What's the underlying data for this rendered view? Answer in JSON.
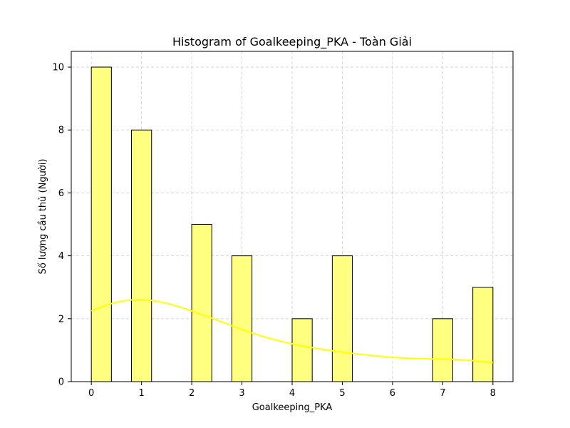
{
  "chart_data": {
    "type": "bar",
    "title": "Histogram of Goalkeeping_PKA - Toàn Giải",
    "xlabel": "Goalkeeping_PKA",
    "ylabel": "Số lượng cầu thủ (Người)",
    "xlim": [
      -0.4,
      8.4
    ],
    "ylim": [
      0,
      10.5
    ],
    "xticks": [
      0,
      1,
      2,
      3,
      4,
      5,
      6,
      7,
      8
    ],
    "yticks": [
      0,
      2,
      4,
      6,
      8,
      10
    ],
    "bin_width": 0.4,
    "bins": [
      {
        "x0": 0.0,
        "x1": 0.4,
        "count": 10
      },
      {
        "x0": 0.8,
        "x1": 1.2,
        "count": 8
      },
      {
        "x0": 2.0,
        "x1": 2.4,
        "count": 5
      },
      {
        "x0": 2.8,
        "x1": 3.2,
        "count": 4
      },
      {
        "x0": 4.0,
        "x1": 4.4,
        "count": 2
      },
      {
        "x0": 4.8,
        "x1": 5.2,
        "count": 4
      },
      {
        "x0": 6.8,
        "x1": 7.2,
        "count": 2
      },
      {
        "x0": 7.6,
        "x1": 8.0,
        "count": 3
      }
    ],
    "kde": {
      "x": [
        0.0,
        0.4,
        0.8,
        1.2,
        1.6,
        2.0,
        2.4,
        2.8,
        3.2,
        3.6,
        4.0,
        4.4,
        4.8,
        5.2,
        5.6,
        6.0,
        6.4,
        6.8,
        7.2,
        7.6,
        8.0
      ],
      "y": [
        2.25,
        2.48,
        2.6,
        2.58,
        2.45,
        2.25,
        2.02,
        1.78,
        1.55,
        1.36,
        1.2,
        1.08,
        0.98,
        0.9,
        0.83,
        0.77,
        0.74,
        0.72,
        0.71,
        0.67,
        0.6
      ]
    },
    "grid": true,
    "bar_color": "#ffff80",
    "line_color": "#ffff00"
  }
}
